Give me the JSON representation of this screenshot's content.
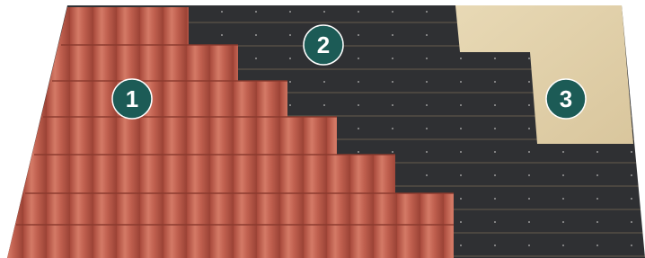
{
  "markers": [
    {
      "label": "1"
    },
    {
      "label": "2"
    },
    {
      "label": "3"
    }
  ]
}
